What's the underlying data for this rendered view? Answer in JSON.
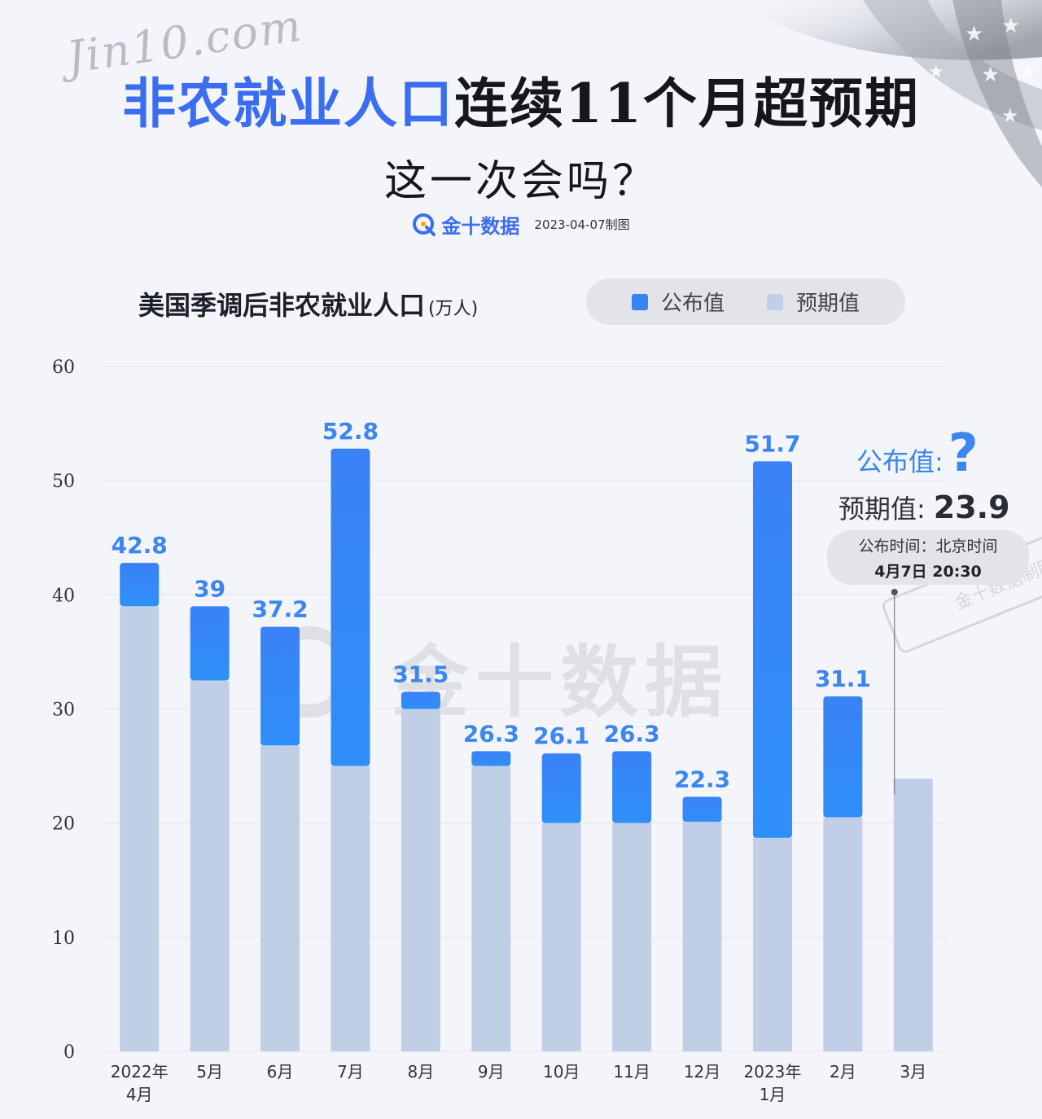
{
  "header": {
    "script_logo": "Jin10.com",
    "title_highlight": "非农就业人口",
    "title_rest": "连续11个月超预期",
    "subtitle": "这一次会吗？",
    "brand_name": "金十数据",
    "date": "2023-04-07制图"
  },
  "legend": {
    "released_label": "公布值",
    "expected_label": "预期值",
    "released_color": "#3a82f7",
    "expected_color": "#c1cfe6"
  },
  "annotation": {
    "released_label": "公布值:",
    "released_value": "?",
    "expected_label": "预期值:",
    "expected_value": "23.9",
    "time_line1": "公布时间：北京时间",
    "time_line2": "4月7日 20:30"
  },
  "watermark": {
    "text": "金十数据",
    "stamp_text": "金十数据制图"
  },
  "chart_data": {
    "type": "bar",
    "title": "美国季调后非农就业人口",
    "unit": "(万人)",
    "categories": [
      [
        "2022年",
        "4月"
      ],
      [
        "5月"
      ],
      [
        "6月"
      ],
      [
        "7月"
      ],
      [
        "8月"
      ],
      [
        "9月"
      ],
      [
        "10月"
      ],
      [
        "11月"
      ],
      [
        "12月"
      ],
      [
        "2023年",
        "1月"
      ],
      [
        "2月"
      ],
      [
        "3月"
      ]
    ],
    "series": [
      {
        "name": "公布值",
        "values": [
          42.8,
          39,
          37.2,
          52.8,
          31.5,
          26.3,
          26.1,
          26.3,
          22.3,
          51.7,
          31.1,
          null
        ]
      },
      {
        "name": "预期值",
        "values": [
          39,
          32.5,
          26.8,
          25,
          30,
          25,
          20,
          20,
          20.1,
          18.7,
          20.5,
          23.9
        ]
      }
    ],
    "ylim": [
      0,
      60
    ],
    "yticks": [
      0,
      10,
      20,
      30,
      40,
      50,
      60
    ],
    "grid": true,
    "legend_position": "top-right"
  }
}
